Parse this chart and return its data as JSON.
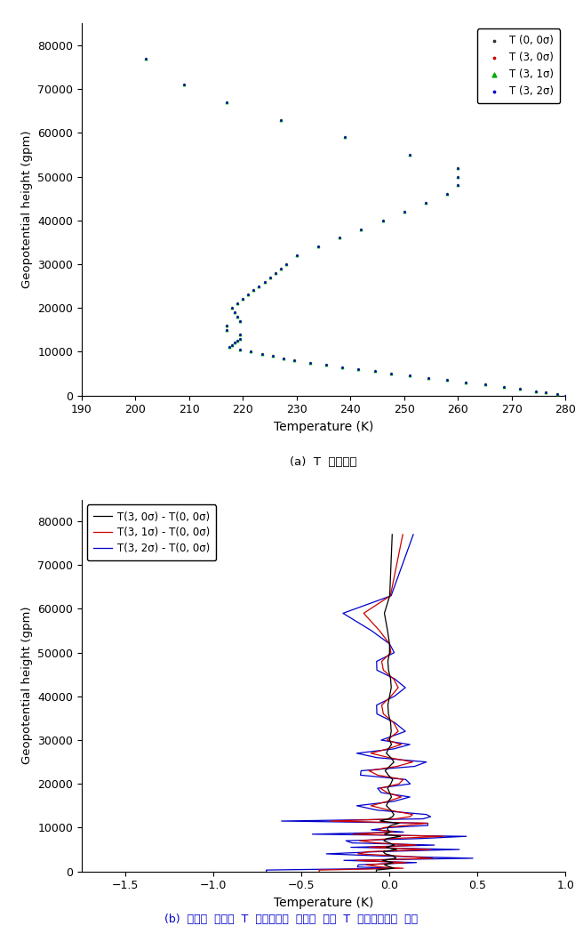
{
  "title_a": "(a)  T  프로파일",
  "title_b": "(b)  오차가  주입된  T  프로파일과  오차가  없는  T  프로파일간의  차이",
  "xlabel": "Temperature (K)",
  "ylabel": "Geopotential height (gpm)",
  "xlim_a": [
    190,
    280
  ],
  "xlim_b": [
    -1.75,
    1.0
  ],
  "ylim": [
    0,
    85000
  ],
  "xticks_a": [
    190,
    200,
    210,
    220,
    230,
    240,
    250,
    260,
    270,
    280
  ],
  "xticks_b": [
    -1.5,
    -1.0,
    -0.5,
    0.0,
    0.5,
    1.0
  ],
  "yticks": [
    0,
    10000,
    20000,
    30000,
    40000,
    50000,
    60000,
    70000,
    80000
  ],
  "legend_a": [
    "T (0, 0σ)",
    "T (3, 0σ)",
    "T (3, 1σ)",
    "T (3, 2σ)"
  ],
  "legend_b": [
    "T(3, 0σ) - T(0, 0σ)",
    "T(3, 1σ) - T(0, 0σ)",
    "T(3, 2σ) - T(0, 0σ)"
  ],
  "colors_a": [
    "#333333",
    "#cc0000",
    "#00aa00",
    "#0000cc"
  ],
  "colors_b": [
    "#000000",
    "#cc0000",
    "#0000cc"
  ],
  "title_color_b": "#0000cc",
  "background_color": "#ffffff"
}
